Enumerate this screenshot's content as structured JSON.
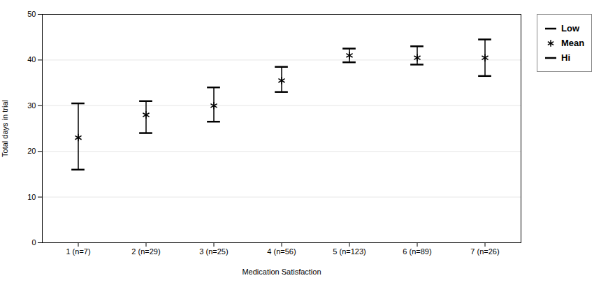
{
  "chart_data": {
    "type": "errorbar",
    "categories": [
      "1 (n=7)",
      "2 (n=29)",
      "3 (n=25)",
      "4 (n=56)",
      "5 (n=123)",
      "6 (n=89)",
      "7 (n=26)"
    ],
    "means": [
      23.0,
      28.0,
      30.0,
      35.5,
      41.0,
      40.5,
      40.5
    ],
    "lows": [
      16.0,
      24.0,
      26.5,
      33.0,
      39.5,
      39.0,
      36.5
    ],
    "highs": [
      30.5,
      31.0,
      34.0,
      38.5,
      42.5,
      43.0,
      44.5
    ],
    "xlabel": "Medication Satisfaction",
    "ylabel": "Total days in trial",
    "ylim": [
      0,
      50
    ],
    "yticks": [
      0,
      10,
      20,
      30,
      40,
      50
    ],
    "grid": true,
    "legend": "right",
    "legend_labels": [
      "Low",
      "Mean",
      "Hi"
    ],
    "color": "black",
    "marker": "asterisk"
  }
}
